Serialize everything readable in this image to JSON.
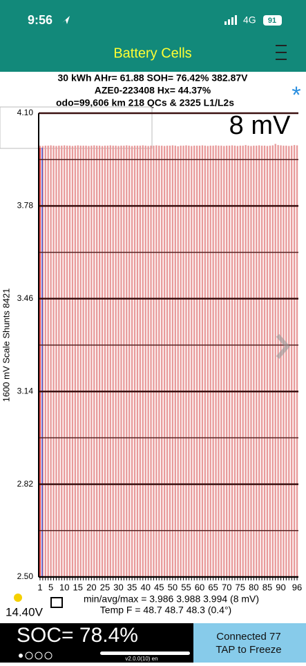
{
  "status_bar": {
    "time": "9:56",
    "network": "4G",
    "battery": "91"
  },
  "header": {
    "title": "Battery Cells"
  },
  "info": {
    "line1": "30 kWh  AHr= 61.88  SOH= 76.42%   382.87V",
    "line2": "AZE0-223408   Hx= 44.37%",
    "line3": "odo=99,606 km 218 QCs & 2325 L1/L2s",
    "star": "*"
  },
  "chart_data": {
    "type": "bar",
    "annotation": "8 mV",
    "y_label": "1600 mV Scale   Shunts 8421",
    "color": "#e89a9a",
    "categories": [
      "1",
      null,
      null,
      null,
      "5",
      null,
      null,
      null,
      null,
      "10",
      null,
      null,
      null,
      null,
      "15",
      null,
      null,
      null,
      null,
      "20",
      null,
      null,
      null,
      null,
      "25",
      null,
      null,
      null,
      null,
      "30",
      null,
      null,
      null,
      null,
      "35",
      null,
      null,
      null,
      null,
      "40",
      null,
      null,
      null,
      null,
      "45",
      null,
      null,
      null,
      null,
      "50",
      null,
      null,
      null,
      null,
      "55",
      null,
      null,
      null,
      null,
      "60",
      null,
      null,
      null,
      null,
      "65",
      null,
      null,
      null,
      null,
      "70",
      null,
      null,
      null,
      null,
      "75",
      null,
      null,
      null,
      null,
      "80",
      null,
      null,
      null,
      null,
      "85",
      null,
      null,
      null,
      null,
      "90",
      null,
      null,
      null,
      null,
      null,
      "96"
    ],
    "values": [
      3.988,
      3.987,
      3.988,
      3.988,
      3.989,
      3.988,
      3.987,
      3.988,
      3.988,
      3.989,
      3.988,
      3.988,
      3.987,
      3.988,
      3.989,
      3.988,
      3.988,
      3.988,
      3.987,
      3.988,
      3.989,
      3.988,
      3.988,
      3.987,
      3.988,
      3.988,
      3.989,
      3.988,
      3.988,
      3.987,
      3.988,
      3.988,
      3.989,
      3.988,
      3.987,
      3.988,
      3.988,
      3.988,
      3.989,
      3.988,
      3.987,
      3.988,
      3.988,
      3.989,
      3.988,
      3.988,
      3.987,
      3.988,
      3.988,
      3.989,
      3.988,
      3.986,
      3.988,
      3.988,
      3.989,
      3.988,
      3.987,
      3.988,
      3.988,
      3.988,
      3.989,
      3.988,
      3.987,
      3.988,
      3.988,
      3.989,
      3.988,
      3.988,
      3.987,
      3.988,
      3.988,
      3.989,
      3.988,
      3.987,
      3.988,
      3.988,
      3.99,
      3.988,
      3.987,
      3.988,
      3.988,
      3.989,
      3.988,
      3.988,
      3.987,
      3.988,
      3.989,
      3.994,
      3.99,
      3.989,
      3.988,
      3.988,
      3.987,
      3.988,
      3.99,
      3.989
    ],
    "ylim": [
      2.5,
      4.1
    ],
    "yticks": [
      {
        "value": 4.1,
        "label": "4.10"
      },
      3.78,
      3.46,
      3.14,
      2.82,
      {
        "value": 2.5,
        "label": "2.50"
      }
    ],
    "minor_grid": [
      3.94,
      3.62,
      3.3,
      2.98,
      2.66
    ],
    "grid": true
  },
  "footer": {
    "stats": "min/avg/max = 3.986 3.988 3.994  (8 mV)",
    "temp": "Temp F = 48.7  48.7  48.3  (0.4°)",
    "voltage": "14.40V",
    "soc": "SOC= 78.4%",
    "connected": "Connected 77",
    "tap": "TAP to Freeze",
    "version": "v2.0.0(10) en"
  }
}
